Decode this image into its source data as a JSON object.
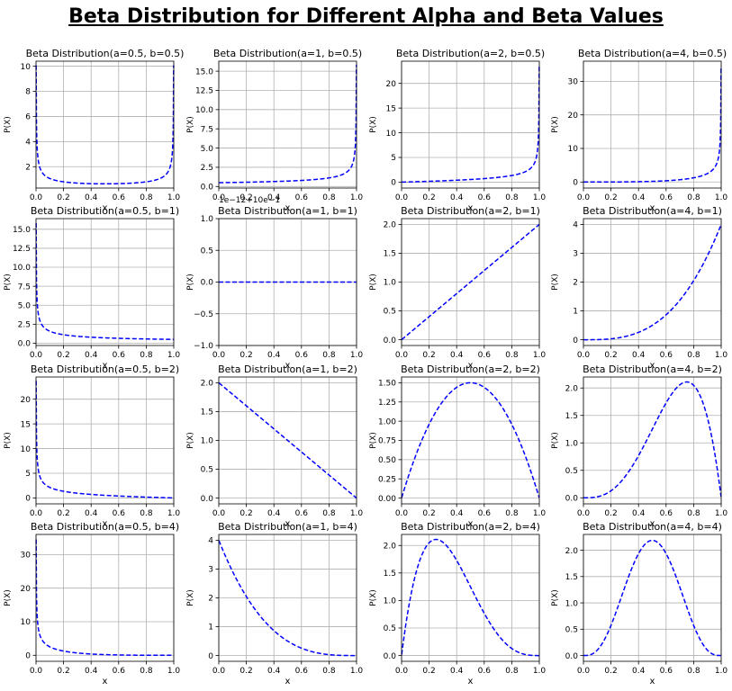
{
  "title": "Beta Distribution for Different Alpha and Beta Values",
  "chart_data": [
    {
      "type": "line",
      "title": "Beta Distribution(a=0.5, b=0.5)",
      "a": 0.5,
      "b": 0.5,
      "xlabel": "x",
      "ylabel": "P(X)",
      "xlim": [
        0,
        1
      ],
      "ylim": [
        0.3,
        10.4
      ],
      "xticks": [
        "0.0",
        "0.2",
        "0.4",
        "0.6",
        "0.8",
        "1.0"
      ],
      "yticks": [
        {
          "v": 2,
          "l": "2"
        },
        {
          "v": 4,
          "l": "4"
        },
        {
          "v": 6,
          "l": "6"
        },
        {
          "v": 8,
          "l": "8"
        },
        {
          "v": 10,
          "l": "10"
        }
      ],
      "line_color": "#0000ff",
      "line_style": "dashed",
      "grid": true
    },
    {
      "type": "line",
      "title": "Beta Distribution(a=1, b=0.5)",
      "a": 1,
      "b": 0.5,
      "xlabel": "x",
      "ylabel": "P(X)",
      "xlim": [
        0,
        1
      ],
      "ylim": [
        -0.2,
        16.3
      ],
      "xticks": [
        "0.0",
        "0.2",
        "0.4",
        "0.6",
        "0.8",
        "1.0"
      ],
      "yticks": [
        {
          "v": 0,
          "l": "0.0"
        },
        {
          "v": 2.5,
          "l": "2.5"
        },
        {
          "v": 5,
          "l": "5.0"
        },
        {
          "v": 7.5,
          "l": "7.5"
        },
        {
          "v": 10,
          "l": "10.0"
        },
        {
          "v": 12.5,
          "l": "12.5"
        },
        {
          "v": 15,
          "l": "15.0"
        }
      ],
      "line_color": "#0000ff",
      "line_style": "dashed",
      "grid": true
    },
    {
      "type": "line",
      "title": "Beta Distribution(a=2, b=0.5)",
      "a": 2,
      "b": 0.5,
      "xlabel": "x",
      "ylabel": "P(X)",
      "xlim": [
        0,
        1
      ],
      "ylim": [
        -1.2,
        24.5
      ],
      "xticks": [
        "0.0",
        "0.2",
        "0.4",
        "0.6",
        "0.8",
        "1.0"
      ],
      "yticks": [
        {
          "v": 0,
          "l": "0"
        },
        {
          "v": 5,
          "l": "5"
        },
        {
          "v": 10,
          "l": "10"
        },
        {
          "v": 15,
          "l": "15"
        },
        {
          "v": 20,
          "l": "20"
        }
      ],
      "line_color": "#0000ff",
      "line_style": "dashed",
      "grid": true
    },
    {
      "type": "line",
      "title": "Beta Distribution(a=4, b=0.5)",
      "a": 4,
      "b": 0.5,
      "xlabel": "x",
      "ylabel": "P(X)",
      "xlim": [
        0,
        1
      ],
      "ylim": [
        -1.8,
        36
      ],
      "xticks": [
        "0.0",
        "0.2",
        "0.4",
        "0.6",
        "0.8",
        "1.0"
      ],
      "yticks": [
        {
          "v": 0,
          "l": "0"
        },
        {
          "v": 10,
          "l": "10"
        },
        {
          "v": 20,
          "l": "20"
        },
        {
          "v": 30,
          "l": "30"
        }
      ],
      "line_color": "#0000ff",
      "line_style": "dashed",
      "grid": true
    },
    {
      "type": "line",
      "title": "Beta Distribution(a=0.5, b=1)",
      "a": 0.5,
      "b": 1,
      "xlabel": "x",
      "ylabel": "P(X)",
      "xlim": [
        0,
        1
      ],
      "ylim": [
        -0.3,
        16.4
      ],
      "xticks": [
        "0.0",
        "0.2",
        "0.4",
        "0.6",
        "0.8",
        "1.0"
      ],
      "yticks": [
        {
          "v": 0,
          "l": "0.0"
        },
        {
          "v": 2.5,
          "l": "2.5"
        },
        {
          "v": 5,
          "l": "5.0"
        },
        {
          "v": 7.5,
          "l": "7.5"
        },
        {
          "v": 10,
          "l": "10.0"
        },
        {
          "v": 12.5,
          "l": "12.5"
        },
        {
          "v": 15,
          "l": "15.0"
        }
      ],
      "line_color": "#0000ff",
      "line_style": "dashed",
      "grid": true
    },
    {
      "type": "line",
      "title": "Beta Distribution(a=1, b=1)",
      "a": 1,
      "b": 1,
      "xlabel": "x",
      "ylabel": "P(X)",
      "xlim": [
        0,
        1
      ],
      "ylim": [
        -1,
        1
      ],
      "offset_text": "1e−12+10e−1",
      "xticks": [
        "0.0",
        "0.2",
        "0.4",
        "0.6",
        "0.8",
        "1.0"
      ],
      "yticks": [
        {
          "v": -1,
          "l": "−1.0"
        },
        {
          "v": -0.5,
          "l": "−0.5"
        },
        {
          "v": 0,
          "l": "0.0"
        },
        {
          "v": 0.5,
          "l": "0.5"
        },
        {
          "v": 1,
          "l": "1.0"
        }
      ],
      "line_color": "#0000ff",
      "line_style": "dashed",
      "grid": true
    },
    {
      "type": "line",
      "title": "Beta Distribution(a=2, b=1)",
      "a": 2,
      "b": 1,
      "xlabel": "x",
      "ylabel": "P(X)",
      "xlim": [
        0,
        1
      ],
      "ylim": [
        -0.1,
        2.1
      ],
      "xticks": [
        "0.0",
        "0.2",
        "0.4",
        "0.6",
        "0.8",
        "1.0"
      ],
      "yticks": [
        {
          "v": 0,
          "l": "0.0"
        },
        {
          "v": 0.5,
          "l": "0.5"
        },
        {
          "v": 1,
          "l": "1.0"
        },
        {
          "v": 1.5,
          "l": "1.5"
        },
        {
          "v": 2,
          "l": "2.0"
        }
      ],
      "line_color": "#0000ff",
      "line_style": "dashed",
      "grid": true
    },
    {
      "type": "line",
      "title": "Beta Distribution(a=4, b=1)",
      "a": 4,
      "b": 1,
      "xlabel": "x",
      "ylabel": "P(X)",
      "xlim": [
        0,
        1
      ],
      "ylim": [
        -0.2,
        4.2
      ],
      "xticks": [
        "0.0",
        "0.2",
        "0.4",
        "0.6",
        "0.8",
        "1.0"
      ],
      "yticks": [
        {
          "v": 0,
          "l": "0"
        },
        {
          "v": 1,
          "l": "1"
        },
        {
          "v": 2,
          "l": "2"
        },
        {
          "v": 3,
          "l": "3"
        },
        {
          "v": 4,
          "l": "4"
        }
      ],
      "line_color": "#0000ff",
      "line_style": "dashed",
      "grid": true
    },
    {
      "type": "line",
      "title": "Beta Distribution(a=0.5, b=2)",
      "a": 0.5,
      "b": 2,
      "xlabel": "x",
      "ylabel": "P(X)",
      "xlim": [
        0,
        1
      ],
      "ylim": [
        -1.2,
        24.5
      ],
      "xticks": [
        "0.0",
        "0.2",
        "0.4",
        "0.6",
        "0.8",
        "1.0"
      ],
      "yticks": [
        {
          "v": 0,
          "l": "0"
        },
        {
          "v": 5,
          "l": "5"
        },
        {
          "v": 10,
          "l": "10"
        },
        {
          "v": 15,
          "l": "15"
        },
        {
          "v": 20,
          "l": "20"
        }
      ],
      "line_color": "#0000ff",
      "line_style": "dashed",
      "grid": true
    },
    {
      "type": "line",
      "title": "Beta Distribution(a=1, b=2)",
      "a": 1,
      "b": 2,
      "xlabel": "x",
      "ylabel": "P(X)",
      "xlim": [
        0,
        1
      ],
      "ylim": [
        -0.1,
        2.1
      ],
      "xticks": [
        "0.0",
        "0.2",
        "0.4",
        "0.6",
        "0.8",
        "1.0"
      ],
      "yticks": [
        {
          "v": 0,
          "l": "0.0"
        },
        {
          "v": 0.5,
          "l": "0.5"
        },
        {
          "v": 1,
          "l": "1.0"
        },
        {
          "v": 1.5,
          "l": "1.5"
        },
        {
          "v": 2,
          "l": "2.0"
        }
      ],
      "line_color": "#0000ff",
      "line_style": "dashed",
      "grid": true
    },
    {
      "type": "line",
      "title": "Beta Distribution(a=2, b=2)",
      "a": 2,
      "b": 2,
      "xlabel": "x",
      "ylabel": "P(X)",
      "xlim": [
        0,
        1
      ],
      "ylim": [
        -0.075,
        1.575
      ],
      "xticks": [
        "0.0",
        "0.2",
        "0.4",
        "0.6",
        "0.8",
        "1.0"
      ],
      "yticks": [
        {
          "v": 0,
          "l": "0.00"
        },
        {
          "v": 0.25,
          "l": "0.25"
        },
        {
          "v": 0.5,
          "l": "0.50"
        },
        {
          "v": 0.75,
          "l": "0.75"
        },
        {
          "v": 1,
          "l": "1.00"
        },
        {
          "v": 1.25,
          "l": "1.25"
        },
        {
          "v": 1.5,
          "l": "1.50"
        }
      ],
      "line_color": "#0000ff",
      "line_style": "dashed",
      "grid": true
    },
    {
      "type": "line",
      "title": "Beta Distribution(a=4, b=2)",
      "a": 4,
      "b": 2,
      "xlabel": "x",
      "ylabel": "P(X)",
      "xlim": [
        0,
        1
      ],
      "ylim": [
        -0.11,
        2.2
      ],
      "xticks": [
        "0.0",
        "0.2",
        "0.4",
        "0.6",
        "0.8",
        "1.0"
      ],
      "yticks": [
        {
          "v": 0,
          "l": "0.0"
        },
        {
          "v": 0.5,
          "l": "0.5"
        },
        {
          "v": 1,
          "l": "1.0"
        },
        {
          "v": 1.5,
          "l": "1.5"
        },
        {
          "v": 2,
          "l": "2.0"
        }
      ],
      "line_color": "#0000ff",
      "line_style": "dashed",
      "grid": true
    },
    {
      "type": "line",
      "title": "Beta Distribution(a=0.5, b=4)",
      "a": 0.5,
      "b": 4,
      "xlabel": "x",
      "ylabel": "P(X)",
      "xlim": [
        0,
        1
      ],
      "ylim": [
        -1.8,
        36
      ],
      "xticks": [
        "0.0",
        "0.2",
        "0.4",
        "0.6",
        "0.8",
        "1.0"
      ],
      "yticks": [
        {
          "v": 0,
          "l": "0"
        },
        {
          "v": 10,
          "l": "10"
        },
        {
          "v": 20,
          "l": "20"
        },
        {
          "v": 30,
          "l": "30"
        }
      ],
      "line_color": "#0000ff",
      "line_style": "dashed",
      "grid": true
    },
    {
      "type": "line",
      "title": "Beta Distribution(a=1, b=4)",
      "a": 1,
      "b": 4,
      "xlabel": "x",
      "ylabel": "P(X)",
      "xlim": [
        0,
        1
      ],
      "ylim": [
        -0.2,
        4.2
      ],
      "xticks": [
        "0.0",
        "0.2",
        "0.4",
        "0.6",
        "0.8",
        "1.0"
      ],
      "yticks": [
        {
          "v": 0,
          "l": "0"
        },
        {
          "v": 1,
          "l": "1"
        },
        {
          "v": 2,
          "l": "2"
        },
        {
          "v": 3,
          "l": "3"
        },
        {
          "v": 4,
          "l": "4"
        }
      ],
      "line_color": "#0000ff",
      "line_style": "dashed",
      "grid": true
    },
    {
      "type": "line",
      "title": "Beta Distribution(a=2, b=4)",
      "a": 2,
      "b": 4,
      "xlabel": "x",
      "ylabel": "P(X)",
      "xlim": [
        0,
        1
      ],
      "ylim": [
        -0.105,
        2.2
      ],
      "xticks": [
        "0.0",
        "0.2",
        "0.4",
        "0.6",
        "0.8",
        "1.0"
      ],
      "yticks": [
        {
          "v": 0,
          "l": "0.0"
        },
        {
          "v": 0.5,
          "l": "0.5"
        },
        {
          "v": 1,
          "l": "1.0"
        },
        {
          "v": 1.5,
          "l": "1.5"
        },
        {
          "v": 2,
          "l": "2.0"
        }
      ],
      "line_color": "#0000ff",
      "line_style": "dashed",
      "grid": true
    },
    {
      "type": "line",
      "title": "Beta Distribution(a=4, b=4)",
      "a": 4,
      "b": 4,
      "xlabel": "x",
      "ylabel": "P(X)",
      "xlim": [
        0,
        1
      ],
      "ylim": [
        -0.11,
        2.3
      ],
      "xticks": [
        "0.0",
        "0.2",
        "0.4",
        "0.6",
        "0.8",
        "1.0"
      ],
      "yticks": [
        {
          "v": 0,
          "l": "0.0"
        },
        {
          "v": 0.5,
          "l": "0.5"
        },
        {
          "v": 1,
          "l": "1.0"
        },
        {
          "v": 1.5,
          "l": "1.5"
        },
        {
          "v": 2,
          "l": "2.0"
        }
      ],
      "line_color": "#0000ff",
      "line_style": "dashed",
      "grid": true
    }
  ]
}
